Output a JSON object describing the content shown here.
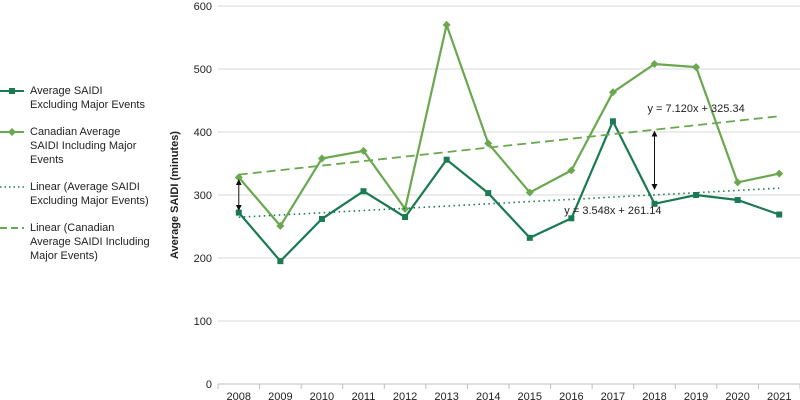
{
  "chart_data": {
    "type": "line",
    "title": "",
    "xlabel": "",
    "ylabel": "Average SAIDI (minutes)",
    "ylim": [
      0,
      600
    ],
    "yticks": [
      0,
      100,
      200,
      300,
      400,
      500,
      600
    ],
    "grid": "horizontal",
    "legend_position": "left",
    "categories": [
      "2008",
      "2009",
      "2010",
      "2011",
      "2012",
      "2013",
      "2014",
      "2015",
      "2016",
      "2017",
      "2018",
      "2019",
      "2020",
      "2021"
    ],
    "series": [
      {
        "name": "Average SAIDI Excluding Major Events",
        "style": "solid",
        "marker": "square",
        "color": "#1a7a52",
        "values": [
          272,
          195,
          262,
          306,
          265,
          356,
          303,
          232,
          263,
          417,
          286,
          300,
          292,
          269
        ]
      },
      {
        "name": "Canadian Average SAIDI Including Major Events",
        "style": "solid",
        "marker": "diamond",
        "color": "#6aa84f",
        "values": [
          328,
          251,
          358,
          370,
          278,
          570,
          382,
          304,
          339,
          463,
          508,
          503,
          320,
          334
        ]
      },
      {
        "name": "Linear (Average SAIDI Excluding Major Events)",
        "style": "dotted",
        "color": "#1a7a52",
        "trend_of": 0,
        "slope": 3.548,
        "intercept": 261.14
      },
      {
        "name": "Linear (Canadian Average SAIDI Including Major Events)",
        "style": "dashed",
        "color": "#6aa84f",
        "trend_of": 1,
        "slope": 7.12,
        "intercept": 325.34
      }
    ],
    "annotations": [
      {
        "text": "y = 7.120x + 325.34",
        "at_category": "2019",
        "at_value": 432
      },
      {
        "text": "y = 3.548x + 261.14",
        "at_category": "2017",
        "at_value": 270
      }
    ],
    "arrows": [
      {
        "category": "2008",
        "from": 272,
        "to": 328
      },
      {
        "category": "2018",
        "from": 305,
        "to": 405
      }
    ]
  }
}
